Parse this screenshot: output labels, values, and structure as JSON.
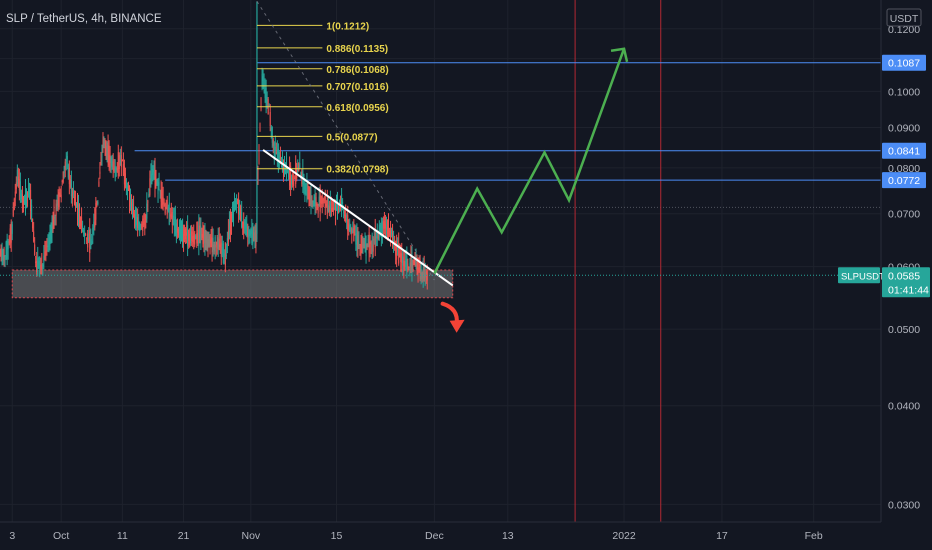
{
  "header": {
    "title": "SLP / TetherUS, 4h, BINANCE",
    "currency": "USDT"
  },
  "colors": {
    "background": "#131722",
    "candle_up": "#26a69a",
    "candle_down": "#ef5350",
    "fib": "#e8d44d",
    "level": "#4c8df6",
    "projection": "#4caf50",
    "trendline": "#ffffff",
    "support_zone": "#777777",
    "down_arrow": "#f44336",
    "vline": "#b22833"
  },
  "chart_data": {
    "type": "candlestick",
    "symbol": "SLPUSDT",
    "y_axis": {
      "scale": "log",
      "ylim": [
        0.0285,
        0.1305
      ],
      "ticks": [
        0.03,
        0.04,
        0.05,
        0.06,
        0.07,
        0.08,
        0.09,
        0.1,
        0.11,
        0.12
      ],
      "tick_labels": [
        "0.0300",
        "0.0400",
        "0.0500",
        "0.0600",
        "0.0700",
        "0.0800",
        "0.0900",
        "0.1000",
        "0.1100",
        "0.1200"
      ]
    },
    "x_axis": {
      "xlim": [
        "2021-09-21",
        "2022-02-12"
      ],
      "ticks": [
        {
          "date": "2021-09-23",
          "label": "3"
        },
        {
          "date": "2021-10-01",
          "label": "Oct"
        },
        {
          "date": "2021-10-11",
          "label": "11"
        },
        {
          "date": "2021-10-21",
          "label": "21"
        },
        {
          "date": "2021-11-01",
          "label": "Nov"
        },
        {
          "date": "2021-11-15",
          "label": "15"
        },
        {
          "date": "2021-12-01",
          "label": "Dec"
        },
        {
          "date": "2021-12-13",
          "label": "13"
        },
        {
          "date": "2022-01-01",
          "label": "2022"
        },
        {
          "date": "2022-01-17",
          "label": "17"
        },
        {
          "date": "2022-02-01",
          "label": "Feb"
        }
      ]
    },
    "price_closes": [
      [
        "2021-09-21",
        0.062
      ],
      [
        "2021-09-22",
        0.066
      ],
      [
        "2021-09-23",
        0.078
      ],
      [
        "2021-09-24",
        0.072
      ],
      [
        "2021-09-25",
        0.075
      ],
      [
        "2021-09-26",
        0.061
      ],
      [
        "2021-09-27",
        0.06
      ],
      [
        "2021-09-28",
        0.064
      ],
      [
        "2021-09-29",
        0.069
      ],
      [
        "2021-09-30",
        0.074
      ],
      [
        "2021-10-01",
        0.082
      ],
      [
        "2021-10-02",
        0.074
      ],
      [
        "2021-10-03",
        0.07
      ],
      [
        "2021-10-04",
        0.066
      ],
      [
        "2021-10-05",
        0.064
      ],
      [
        "2021-10-06",
        0.072
      ],
      [
        "2021-10-07",
        0.086
      ],
      [
        "2021-10-08",
        0.083
      ],
      [
        "2021-10-09",
        0.079
      ],
      [
        "2021-10-10",
        0.082
      ],
      [
        "2021-10-11",
        0.075
      ],
      [
        "2021-10-12",
        0.07
      ],
      [
        "2021-10-13",
        0.067
      ],
      [
        "2021-10-14",
        0.069
      ],
      [
        "2021-10-15",
        0.079
      ],
      [
        "2021-10-16",
        0.076
      ],
      [
        "2021-10-17",
        0.072
      ],
      [
        "2021-10-18",
        0.07
      ],
      [
        "2021-10-19",
        0.067
      ],
      [
        "2021-10-20",
        0.066
      ],
      [
        "2021-10-21",
        0.066
      ],
      [
        "2021-10-22",
        0.065
      ],
      [
        "2021-10-23",
        0.066
      ],
      [
        "2021-10-24",
        0.065
      ],
      [
        "2021-10-25",
        0.064
      ],
      [
        "2021-10-26",
        0.064
      ],
      [
        "2021-10-27",
        0.062
      ],
      [
        "2021-10-28",
        0.069
      ],
      [
        "2021-10-29",
        0.073
      ],
      [
        "2021-10-30",
        0.067
      ],
      [
        "2021-10-31",
        0.066
      ],
      [
        "2021-11-01",
        0.065
      ],
      [
        "2021-11-02",
        0.103
      ],
      [
        "2021-11-03",
        0.096
      ],
      [
        "2021-11-04",
        0.084
      ],
      [
        "2021-11-05",
        0.082
      ],
      [
        "2021-11-06",
        0.079
      ],
      [
        "2021-11-07",
        0.077
      ],
      [
        "2021-11-08",
        0.08
      ],
      [
        "2021-11-09",
        0.076
      ],
      [
        "2021-11-10",
        0.073
      ],
      [
        "2021-11-11",
        0.072
      ],
      [
        "2021-11-12",
        0.073
      ],
      [
        "2021-11-13",
        0.071
      ],
      [
        "2021-11-14",
        0.071
      ],
      [
        "2021-11-15",
        0.072
      ],
      [
        "2021-11-16",
        0.068
      ],
      [
        "2021-11-17",
        0.066
      ],
      [
        "2021-11-18",
        0.064
      ],
      [
        "2021-11-19",
        0.064
      ],
      [
        "2021-11-20",
        0.064
      ],
      [
        "2021-11-21",
        0.066
      ],
      [
        "2021-11-22",
        0.068
      ],
      [
        "2021-11-23",
        0.066
      ],
      [
        "2021-11-24",
        0.063
      ],
      [
        "2021-11-25",
        0.061
      ],
      [
        "2021-11-26",
        0.06
      ],
      [
        "2021-11-27",
        0.061
      ],
      [
        "2021-11-28",
        0.059
      ],
      [
        "2021-11-29",
        0.0585
      ]
    ],
    "current_price": {
      "label": "SLPUSDT",
      "value": "0.0585",
      "countdown": "01:41:44"
    },
    "horizontal_levels": [
      {
        "value": 0.1087,
        "label": "0.1087",
        "from": "2021-11-02"
      },
      {
        "value": 0.0841,
        "label": "0.0841",
        "from": "2021-10-13"
      },
      {
        "value": 0.0772,
        "label": "0.0772",
        "from": "2021-10-18"
      }
    ],
    "fibonacci": {
      "from": "2021-11-02",
      "to": "2021-12-01",
      "levels": [
        {
          "ratio": "1",
          "value": 0.1212,
          "label": "1(0.1212)"
        },
        {
          "ratio": "0.886",
          "value": 0.1135,
          "label": "0.886(0.1135)"
        },
        {
          "ratio": "0.786",
          "value": 0.1068,
          "label": "0.786(0.1068)"
        },
        {
          "ratio": "0.707",
          "value": 0.1016,
          "label": "0.707(0.1016)"
        },
        {
          "ratio": "0.618",
          "value": 0.0956,
          "label": "0.618(0.0956)"
        },
        {
          "ratio": "0.5",
          "value": 0.0877,
          "label": "0.5(0.0877)"
        },
        {
          "ratio": "0.382",
          "value": 0.0798,
          "label": "0.382(0.0798)"
        }
      ]
    },
    "support_zone": {
      "from": "2021-09-23",
      "to": "2021-12-04",
      "top": 0.0594,
      "bottom": 0.0548
    },
    "trendline": [
      [
        "2021-11-03",
        0.0843
      ],
      [
        "2021-12-04",
        0.0568
      ]
    ],
    "projection_path": [
      [
        "2021-12-01",
        0.0588
      ],
      [
        "2021-12-08",
        0.0753
      ],
      [
        "2021-12-12",
        0.0663
      ],
      [
        "2021-12-19",
        0.0837
      ],
      [
        "2021-12-23",
        0.0728
      ],
      [
        "2022-01-01",
        0.1132
      ]
    ],
    "vertical_markers": [
      "2021-12-24",
      "2022-01-07"
    ],
    "dotted_levels": [
      0.0713
    ]
  }
}
